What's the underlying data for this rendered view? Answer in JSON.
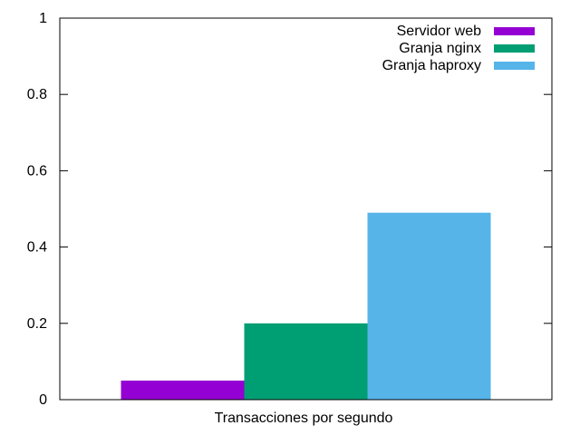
{
  "chart_data": {
    "type": "bar",
    "categories": [
      "Transacciones por segundo"
    ],
    "series": [
      {
        "name": "Servidor web",
        "values": [
          0.05
        ],
        "color": "#9400d3"
      },
      {
        "name": "Granja nginx",
        "values": [
          0.2
        ],
        "color": "#009e73"
      },
      {
        "name": "Granja haproxy",
        "values": [
          0.49
        ],
        "color": "#56b4e9"
      }
    ],
    "ylim": [
      0,
      1
    ],
    "yticks": [
      "0",
      "0.2",
      "0.4",
      "0.6",
      "0.8",
      "1"
    ],
    "ytick_values": [
      0,
      0.2,
      0.4,
      0.6,
      0.8,
      1
    ],
    "legend_position": "top-right",
    "grid": false
  }
}
